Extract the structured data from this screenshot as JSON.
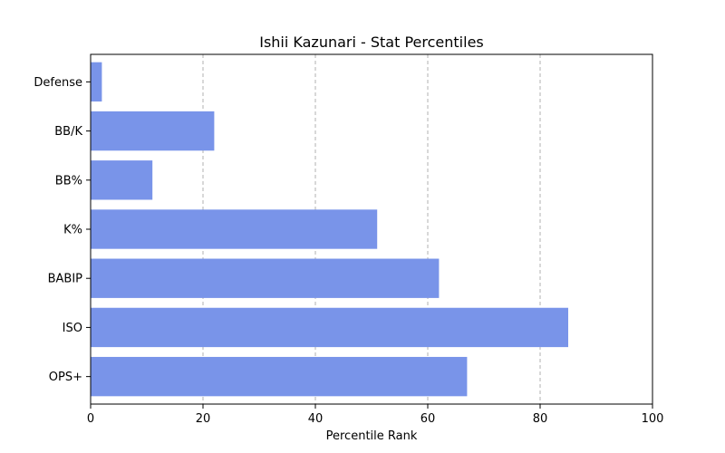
{
  "chart_data": {
    "type": "bar",
    "orientation": "horizontal",
    "title": "Ishii Kazunari - Stat Percentiles",
    "xlabel": "Percentile Rank",
    "ylabel": "",
    "xlim": [
      0,
      100
    ],
    "xticks": [
      0,
      20,
      40,
      60,
      80,
      100
    ],
    "grid": "x-dashed",
    "categories": [
      "OPS+",
      "ISO",
      "BABIP",
      "K%",
      "BB%",
      "BB/K",
      "Defense"
    ],
    "values": [
      67,
      85,
      62,
      51,
      11,
      22,
      2
    ],
    "bar_color": "#7994e9"
  }
}
